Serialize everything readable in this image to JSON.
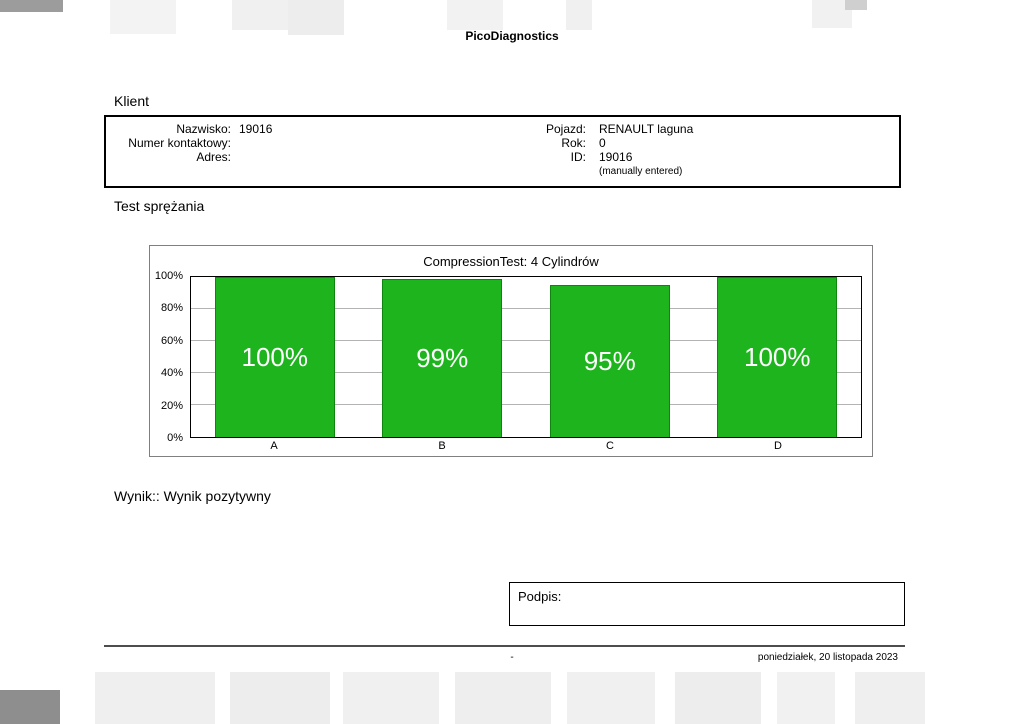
{
  "document": {
    "title": "PicoDiagnostics",
    "footer_center": "-",
    "footer_date": "poniedziałek, 20 listopada 2023"
  },
  "client_section": {
    "heading": "Klient",
    "left_rows": [
      {
        "label": "Nazwisko:",
        "value": "19016"
      },
      {
        "label": "Numer kontaktowy:",
        "value": ""
      },
      {
        "label": "Adres:",
        "value": ""
      }
    ],
    "right_rows": [
      {
        "label": "Pojazd:",
        "value": "RENAULT laguna"
      },
      {
        "label": "Rok:",
        "value": "0"
      },
      {
        "label": "ID:",
        "value": "19016"
      }
    ],
    "note": "(manually entered)"
  },
  "test_section": {
    "heading": "Test sprężania"
  },
  "chart_data": {
    "type": "bar",
    "title": "CompressionTest: 4 Cylindrów",
    "categories": [
      "A",
      "B",
      "C",
      "D"
    ],
    "values": [
      100,
      99,
      95,
      100
    ],
    "value_labels": [
      "100%",
      "99%",
      "95%",
      "100%"
    ],
    "ytick_labels": [
      "100%",
      "80%",
      "60%",
      "40%",
      "20%",
      "0%"
    ],
    "ylim": [
      0,
      100
    ],
    "grid": true,
    "legend": false,
    "bar_color": "#1eb41e",
    "bar_border_color": "#0c860c",
    "value_label_color": "#ffffff"
  },
  "result_section": {
    "text": "Wynik:: Wynik pozytywny"
  },
  "signature_section": {
    "label": "Podpis:"
  }
}
